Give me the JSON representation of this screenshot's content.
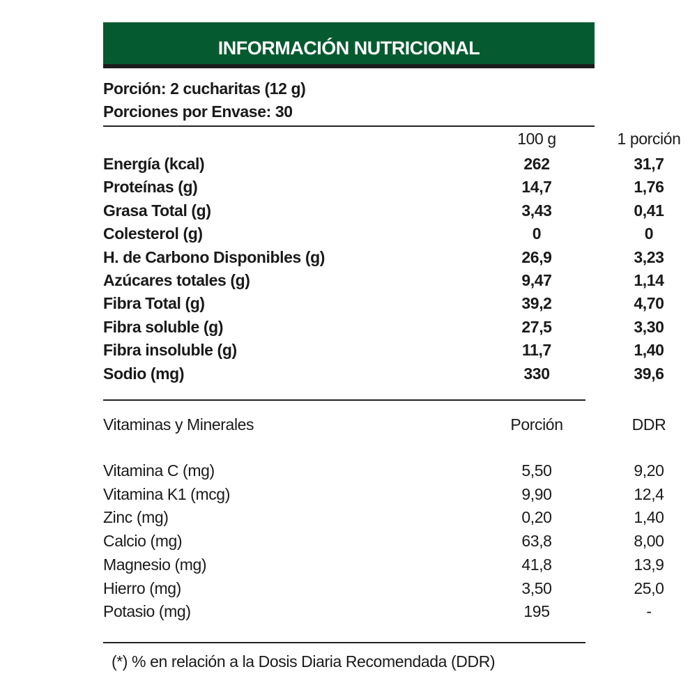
{
  "title": "INFORMACIÓN NUTRICIONAL",
  "colors": {
    "header_green": "#065a30",
    "header_bar": "#1c1c1c"
  },
  "serving": "Porción: 2 cucharitas (12 g)",
  "servings_per_container": "Porciones por Envase: 30",
  "nutrients": {
    "headers": [
      "100 g",
      "1 porción"
    ],
    "rows": [
      {
        "name": "Energía (kcal)",
        "per100": "262",
        "perServing": "31,7"
      },
      {
        "name": "Proteínas (g)",
        "per100": "14,7",
        "perServing": "1,76"
      },
      {
        "name": "Grasa Total (g)",
        "per100": "3,43",
        "perServing": "0,41"
      },
      {
        "name": "Colesterol (g)",
        "per100": "0",
        "perServing": "0"
      },
      {
        "name": "H. de Carbono Disponibles (g)",
        "per100": "26,9",
        "perServing": "3,23"
      },
      {
        "name": "Azúcares totales (g)",
        "per100": "9,47",
        "perServing": "1,14"
      },
      {
        "name": "Fibra Total (g)",
        "per100": "39,2",
        "perServing": "4,70"
      },
      {
        "name": "Fibra soluble (g)",
        "per100": "27,5",
        "perServing": "3,30"
      },
      {
        "name": "Fibra insoluble (g)",
        "per100": "11,7",
        "perServing": "1,40"
      },
      {
        "name": "Sodio (mg)",
        "per100": "330",
        "perServing": "39,6"
      }
    ]
  },
  "vitamins": {
    "title": "Vitaminas y Minerales",
    "headers": [
      "Porción",
      "DDR"
    ],
    "rows": [
      {
        "name": "Vitamina C (mg)",
        "portion": "5,50",
        "ddr": "9,20"
      },
      {
        "name": "Vitamina K1 (mcg)",
        "portion": "9,90",
        "ddr": "12,4"
      },
      {
        "name": "Zinc (mg)",
        "portion": "0,20",
        "ddr": "1,40"
      },
      {
        "name": "Calcio (mg)",
        "portion": "63,8",
        "ddr": "8,00"
      },
      {
        "name": "Magnesio (mg)",
        "portion": "41,8",
        "ddr": "13,9"
      },
      {
        "name": "Hierro (mg)",
        "portion": "3,50",
        "ddr": "25,0"
      },
      {
        "name": "Potasio (mg)",
        "portion": "195",
        "ddr": "-"
      }
    ]
  },
  "footnote": "(*) % en relación a la Dosis Diaria Recomendada (DDR)"
}
